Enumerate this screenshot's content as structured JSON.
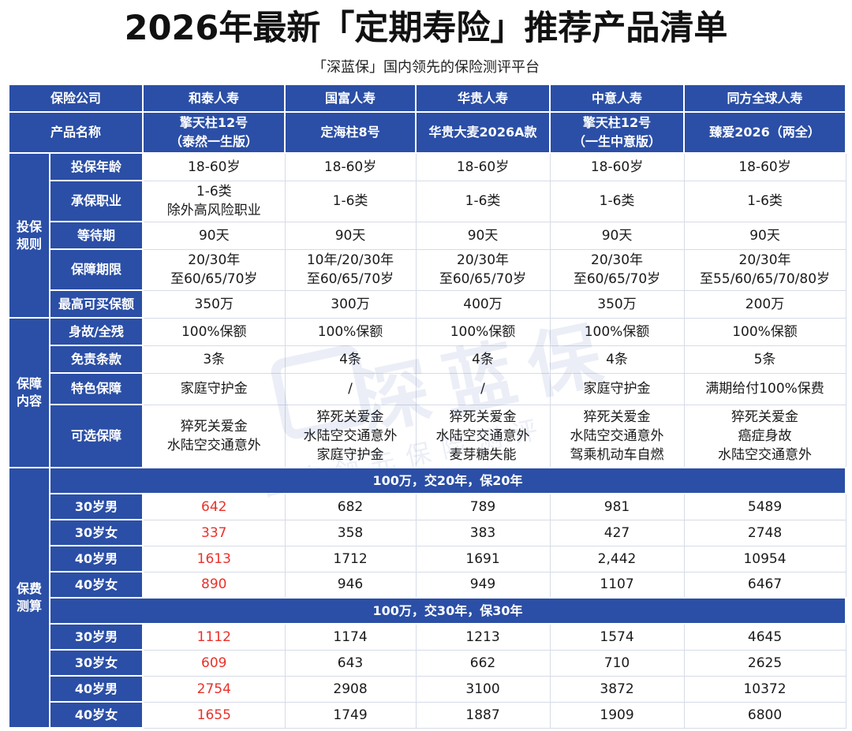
{
  "title": "2026年最新「定期寿险」推荐产品清单",
  "subtitle": "「深蓝保」国内领先的保险测评平台",
  "watermark": {
    "main": "深蓝保",
    "sub": "国内领先保险测评"
  },
  "header": {
    "company_label": "保险公司",
    "product_label": "产品名称",
    "companies": [
      "和泰人寿",
      "国富人寿",
      "华贵人寿",
      "中意人寿",
      "同方全球人寿"
    ],
    "products": [
      [
        "擎天柱12号",
        "（泰然一生版）"
      ],
      [
        "定海柱8号"
      ],
      [
        "华贵大麦2026A款"
      ],
      [
        "擎天柱12号",
        "（一生中意版）"
      ],
      [
        "臻爱2026（两全）"
      ]
    ]
  },
  "rules": {
    "group": [
      "投保",
      "规则"
    ],
    "rows": [
      {
        "label": "投保年龄",
        "values": [
          [
            "18-60岁"
          ],
          [
            "18-60岁"
          ],
          [
            "18-60岁"
          ],
          [
            "18-60岁"
          ],
          [
            "18-60岁"
          ]
        ]
      },
      {
        "label": "承保职业",
        "values": [
          [
            "1-6类",
            "除外高风险职业"
          ],
          [
            "1-6类"
          ],
          [
            "1-6类"
          ],
          [
            "1-6类"
          ],
          [
            "1-6类"
          ]
        ]
      },
      {
        "label": "等待期",
        "values": [
          [
            "90天"
          ],
          [
            "90天"
          ],
          [
            "90天"
          ],
          [
            "90天"
          ],
          [
            "90天"
          ]
        ]
      },
      {
        "label": "保障期限",
        "values": [
          [
            "20/30年",
            "至60/65/70岁"
          ],
          [
            "10年/20/30年",
            "至60/65/70岁"
          ],
          [
            "20/30年",
            "至60/65/70岁"
          ],
          [
            "20/30年",
            "至60/65/70岁"
          ],
          [
            "20/30年",
            "至55/60/65/70/80岁"
          ]
        ]
      },
      {
        "label": "最高可买保额",
        "values": [
          [
            "350万"
          ],
          [
            "300万"
          ],
          [
            "400万"
          ],
          [
            "350万"
          ],
          [
            "200万"
          ]
        ]
      }
    ]
  },
  "coverage": {
    "group": [
      "保障",
      "内容"
    ],
    "rows": [
      {
        "label": "身故/全残",
        "values": [
          [
            "100%保额"
          ],
          [
            "100%保额"
          ],
          [
            "100%保额"
          ],
          [
            "100%保额"
          ],
          [
            "100%保额"
          ]
        ]
      },
      {
        "label": "免责条款",
        "values": [
          [
            "3条"
          ],
          [
            "4条"
          ],
          [
            "4条"
          ],
          [
            "4条"
          ],
          [
            "5条"
          ]
        ]
      },
      {
        "label": "特色保障",
        "values": [
          [
            "家庭守护金"
          ],
          [
            "/"
          ],
          [
            "/"
          ],
          [
            "家庭守护金"
          ],
          [
            "满期给付100%保费"
          ]
        ]
      },
      {
        "label": "可选保障",
        "values": [
          [
            "猝死关爱金",
            "水陆空交通意外"
          ],
          [
            "猝死关爱金",
            "水陆空交通意外",
            "家庭守护金"
          ],
          [
            "猝死关爱金",
            "水陆空交通意外",
            "麦芽糖失能"
          ],
          [
            "猝死关爱金",
            "水陆空交通意外",
            "驾乘机动车自燃"
          ],
          [
            "猝死关爱金",
            "癌症身故",
            "水陆空交通意外"
          ]
        ]
      }
    ]
  },
  "premium": {
    "group": [
      "保费",
      "测算"
    ],
    "sections": [
      {
        "band": "100万，交20年，保20年",
        "rows": [
          {
            "label": "30岁男",
            "values": [
              "642",
              "682",
              "789",
              "981",
              "5489"
            ]
          },
          {
            "label": "30岁女",
            "values": [
              "337",
              "358",
              "383",
              "427",
              "2748"
            ]
          },
          {
            "label": "40岁男",
            "values": [
              "1613",
              "1712",
              "1691",
              "2,442",
              "10954"
            ]
          },
          {
            "label": "40岁女",
            "values": [
              "890",
              "946",
              "949",
              "1107",
              "6467"
            ]
          }
        ]
      },
      {
        "band": "100万，交30年，保30年",
        "rows": [
          {
            "label": "30岁男",
            "values": [
              "1112",
              "1174",
              "1213",
              "1574",
              "4645"
            ]
          },
          {
            "label": "30岁女",
            "values": [
              "609",
              "643",
              "662",
              "710",
              "2625"
            ]
          },
          {
            "label": "40岁男",
            "values": [
              "2754",
              "2908",
              "3100",
              "3872",
              "10372"
            ]
          },
          {
            "label": "40岁女",
            "values": [
              "1655",
              "1749",
              "1887",
              "1909",
              "6800"
            ]
          }
        ]
      }
    ]
  },
  "colors": {
    "header_blue": "#2b4fa6",
    "highlight_red": "#e8322b"
  }
}
